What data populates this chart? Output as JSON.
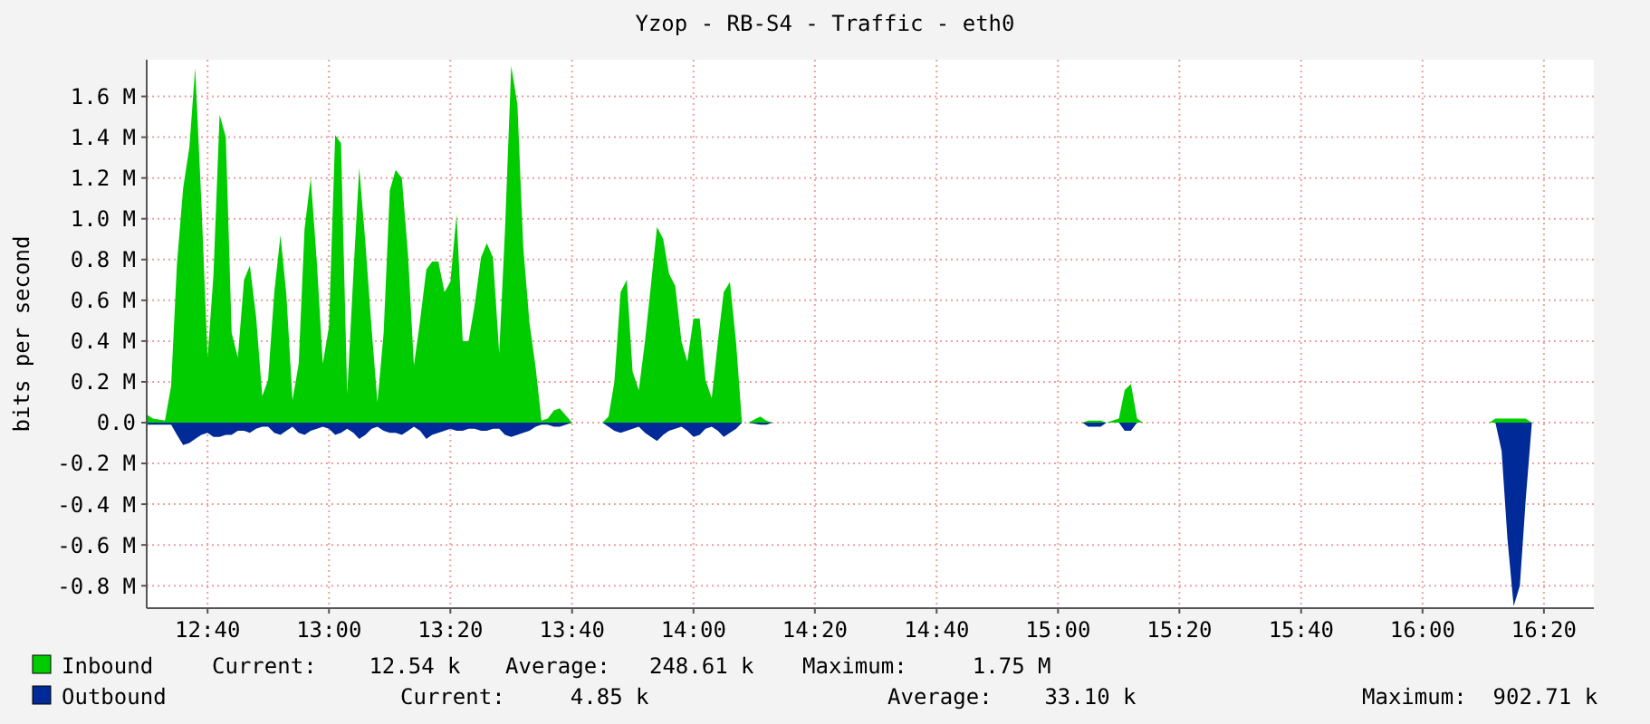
{
  "chart_data": {
    "type": "area",
    "title": "Yzop - RB-S4 - Traffic - eth0",
    "ylabel": "bits per second",
    "x": [
      12.5,
      12.517,
      12.55,
      12.567,
      12.583,
      12.6,
      12.617,
      12.633,
      12.65,
      12.667,
      12.683,
      12.7,
      12.717,
      12.733,
      12.75,
      12.767,
      12.783,
      12.8,
      12.817,
      12.833,
      12.85,
      12.867,
      12.883,
      12.9,
      12.917,
      12.933,
      12.95,
      12.967,
      12.983,
      13,
      13.017,
      13.033,
      13.05,
      13.067,
      13.083,
      13.1,
      13.117,
      13.133,
      13.15,
      13.167,
      13.183,
      13.2,
      13.217,
      13.233,
      13.25,
      13.267,
      13.283,
      13.3,
      13.317,
      13.333,
      13.35,
      13.367,
      13.383,
      13.4,
      13.417,
      13.433,
      13.45,
      13.467,
      13.483,
      13.5,
      13.517,
      13.533,
      13.55,
      13.567,
      13.583,
      13.6,
      13.617,
      13.633,
      13.667,
      13.75,
      13.767,
      13.783,
      13.8,
      13.817,
      13.833,
      13.85,
      13.867,
      13.883,
      13.9,
      13.917,
      13.933,
      13.95,
      13.967,
      13.983,
      14,
      14.017,
      14.033,
      14.05,
      14.067,
      14.083,
      14.1,
      14.117,
      14.133,
      14.15,
      14.183,
      14.2,
      14.217,
      15.067,
      15.083,
      15.117,
      15.133,
      15.167,
      15.183,
      15.2,
      15.217,
      15.233,
      16.183,
      16.2,
      16.217,
      16.233,
      16.25,
      16.267,
      16.283,
      16.3,
      16.467
    ],
    "series": [
      {
        "name": "Inbound",
        "color": "#00cc00",
        "values": [
          0.04,
          0.02,
          0.01,
          0.18,
          0.78,
          1.15,
          1.35,
          1.74,
          1.08,
          0.32,
          0.72,
          1.51,
          1.4,
          0.44,
          0.32,
          0.7,
          0.77,
          0.52,
          0.13,
          0.21,
          0.64,
          0.92,
          0.63,
          0.11,
          0.29,
          0.95,
          1.2,
          0.78,
          0.29,
          0.47,
          1.41,
          1.37,
          0.14,
          0.73,
          1.25,
          0.88,
          0.46,
          0.1,
          0.44,
          1.14,
          1.24,
          1.2,
          0.82,
          0.28,
          0.5,
          0.75,
          0.79,
          0.79,
          0.64,
          0.69,
          1.02,
          0.4,
          0.4,
          0.58,
          0.81,
          0.88,
          0.81,
          0.34,
          0.95,
          1.75,
          1.56,
          0.86,
          0.49,
          0.27,
          0.01,
          0.02,
          0.06,
          0.07,
          0,
          0,
          0.03,
          0.2,
          0.64,
          0.7,
          0.25,
          0.16,
          0.4,
          0.67,
          0.96,
          0.9,
          0.73,
          0.67,
          0.4,
          0.3,
          0.51,
          0.51,
          0.21,
          0.12,
          0.4,
          0.64,
          0.69,
          0.39,
          0,
          0,
          0.03,
          0.01,
          0,
          0,
          0.01,
          0.01,
          0,
          0.02,
          0.16,
          0.19,
          0.02,
          0,
          0,
          0.02,
          0.02,
          0.02,
          0.02,
          0.02,
          0.02,
          0,
          0
        ]
      },
      {
        "name": "Outbound",
        "color": "#002a97",
        "values": [
          -0.01,
          -0.01,
          -0.01,
          -0.01,
          -0.06,
          -0.11,
          -0.1,
          -0.08,
          -0.06,
          -0.05,
          -0.07,
          -0.07,
          -0.06,
          -0.06,
          -0.04,
          -0.04,
          -0.05,
          -0.03,
          -0.02,
          -0.02,
          -0.05,
          -0.06,
          -0.04,
          -0.02,
          -0.05,
          -0.06,
          -0.04,
          -0.03,
          -0.02,
          -0.03,
          -0.06,
          -0.05,
          -0.03,
          -0.05,
          -0.08,
          -0.06,
          -0.03,
          -0.02,
          -0.04,
          -0.05,
          -0.05,
          -0.06,
          -0.04,
          -0.02,
          -0.04,
          -0.08,
          -0.06,
          -0.05,
          -0.04,
          -0.03,
          -0.04,
          -0.04,
          -0.03,
          -0.03,
          -0.04,
          -0.04,
          -0.03,
          -0.03,
          -0.06,
          -0.07,
          -0.06,
          -0.05,
          -0.04,
          -0.02,
          -0.01,
          -0.01,
          -0.02,
          -0.02,
          0,
          0,
          -0.02,
          -0.04,
          -0.05,
          -0.04,
          -0.03,
          -0.02,
          -0.05,
          -0.07,
          -0.09,
          -0.06,
          -0.04,
          -0.03,
          -0.02,
          -0.04,
          -0.07,
          -0.06,
          -0.03,
          -0.02,
          -0.04,
          -0.07,
          -0.05,
          -0.03,
          0,
          0,
          -0.01,
          -0.01,
          0,
          0,
          -0.02,
          -0.02,
          0,
          0,
          -0.04,
          -0.04,
          0,
          0,
          0,
          0,
          -0.14,
          -0.57,
          -0.9,
          -0.8,
          -0.38,
          0,
          0
        ]
      }
    ],
    "xlim": [
      12.5,
      16.47
    ],
    "xticks": [
      {
        "value": 12.667,
        "label": "12:40"
      },
      {
        "value": 13,
        "label": "13:00"
      },
      {
        "value": 13.333,
        "label": "13:20"
      },
      {
        "value": 13.667,
        "label": "13:40"
      },
      {
        "value": 14,
        "label": "14:00"
      },
      {
        "value": 14.333,
        "label": "14:20"
      },
      {
        "value": 14.667,
        "label": "14:40"
      },
      {
        "value": 15,
        "label": "15:00"
      },
      {
        "value": 15.333,
        "label": "15:20"
      },
      {
        "value": 15.667,
        "label": "15:40"
      },
      {
        "value": 16,
        "label": "16:00"
      },
      {
        "value": 16.333,
        "label": "16:20"
      }
    ],
    "ylim": [
      -0.91,
      1.78
    ],
    "yticks": [
      {
        "value": -0.8,
        "label": "-0.8 M"
      },
      {
        "value": -0.6,
        "label": "-0.6 M"
      },
      {
        "value": -0.4,
        "label": "-0.4 M"
      },
      {
        "value": -0.2,
        "label": "-0.2 M"
      },
      {
        "value": 0,
        "label": "0.0"
      },
      {
        "value": 0.2,
        "label": "0.2 M"
      },
      {
        "value": 0.4,
        "label": "0.4 M"
      },
      {
        "value": 0.6,
        "label": "0.6 M"
      },
      {
        "value": 0.8,
        "label": "0.8 M"
      },
      {
        "value": 1,
        "label": "1.0 M"
      },
      {
        "value": 1.2,
        "label": "1.2 M"
      },
      {
        "value": 1.4,
        "label": "1.4 M"
      },
      {
        "value": 1.6,
        "label": "1.6 M"
      }
    ],
    "grid": true,
    "legend": "bottom",
    "annotations": [
      "Current:    12.54 k",
      "Average:   248.61 k",
      "Maximum:     1.75 M",
      "Current:     4.85 k",
      "Average:    33.10 k",
      "Maximum:  902.71 k"
    ]
  }
}
